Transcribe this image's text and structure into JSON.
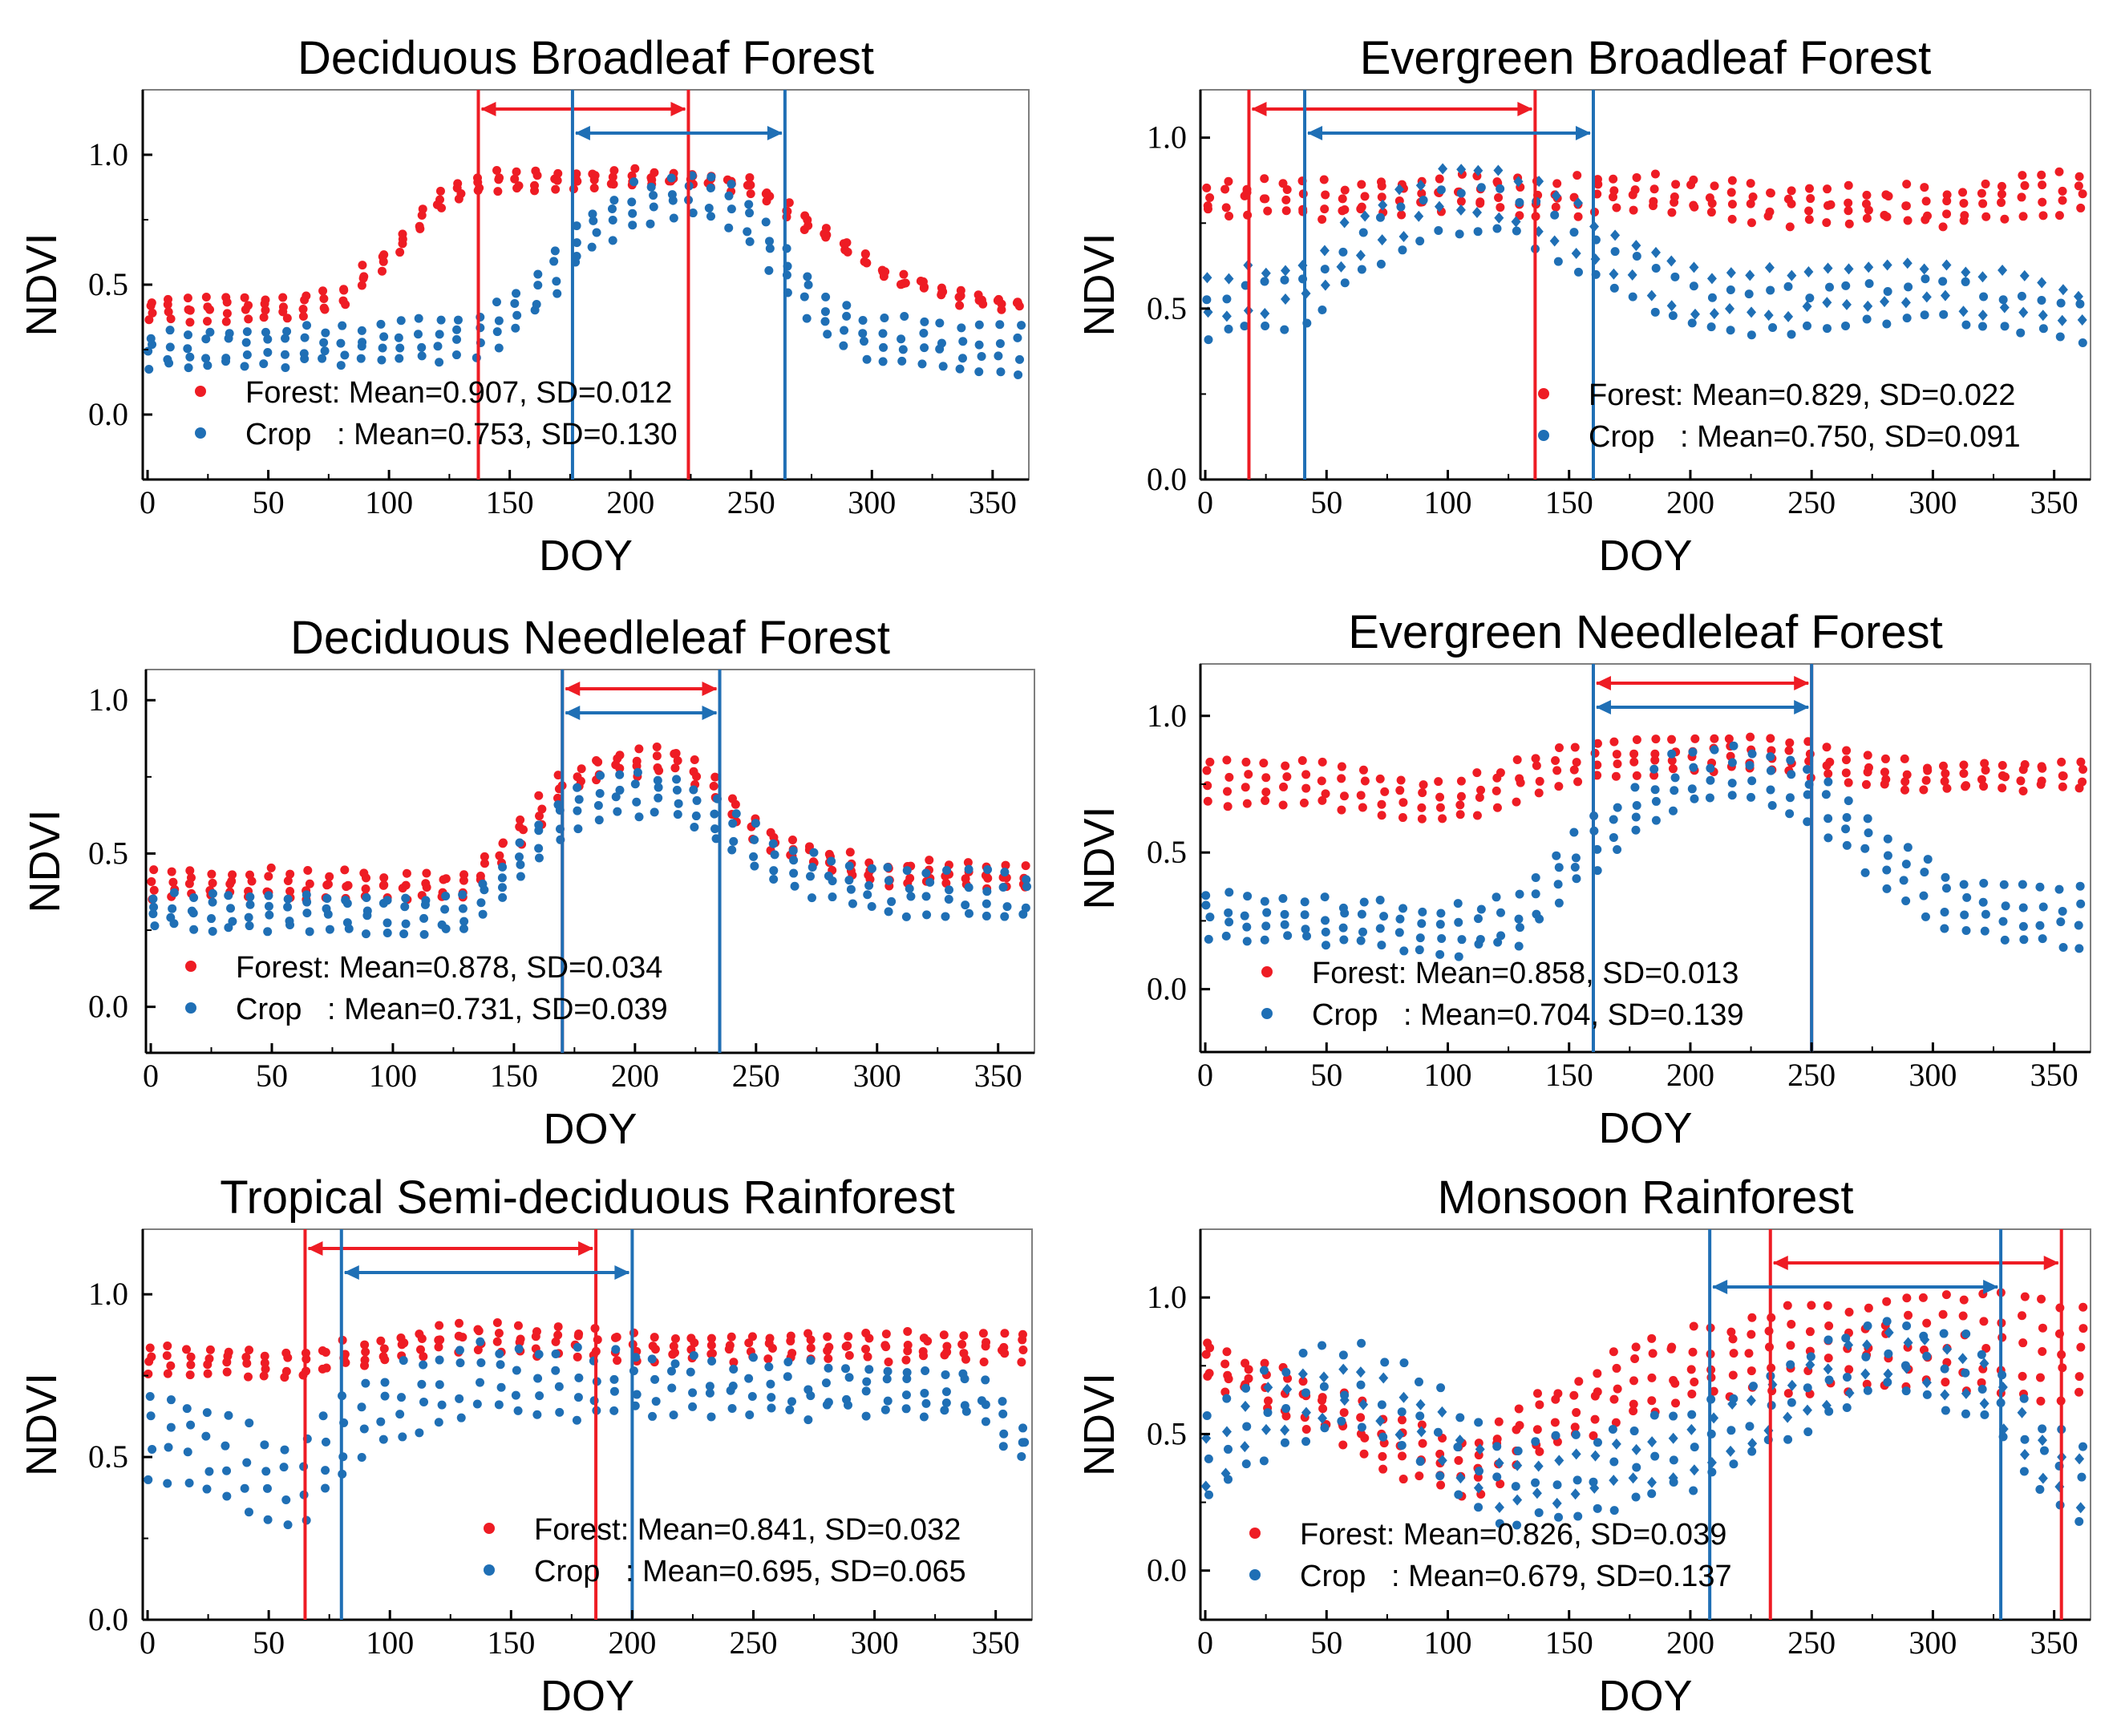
{
  "figure": {
    "colors": {
      "forest": "#ee1c24",
      "crop": "#1f6fb5",
      "axis": "#000000",
      "frame": "#7f7f7f"
    },
    "x_axis_label": "DOY",
    "y_axis_label": "NDVI",
    "x_tick_labels": [
      "0",
      "50",
      "100",
      "150",
      "200",
      "250",
      "300",
      "350"
    ]
  },
  "chart_data": [
    {
      "type": "scatter",
      "title": "Deciduous Broadleaf Forest",
      "xlabel": "DOY",
      "ylabel": "NDVI",
      "xlim": [
        -2,
        365
      ],
      "ylim": [
        -0.25,
        1.25
      ],
      "x_ticks": [
        0,
        50,
        100,
        150,
        200,
        250,
        300,
        350
      ],
      "y_ticks": [
        0.0,
        0.5,
        1.0
      ],
      "y_tick_labels": [
        "0.0",
        "0.5",
        "1.0"
      ],
      "legend_position": "bottom-left",
      "legend": [
        {
          "series": "Forest",
          "text": "Forest: Mean=0.907, SD=0.012"
        },
        {
          "series": "Crop",
          "text": "Crop   : Mean=0.753, SD=0.130"
        }
      ],
      "forest_window": [
        137,
        224
      ],
      "crop_window": [
        176,
        264
      ],
      "series": [
        {
          "name": "Forest",
          "curve": [
            [
              0,
              0.4
            ],
            [
              60,
              0.41
            ],
            [
              80,
              0.45
            ],
            [
              100,
              0.62
            ],
            [
              120,
              0.82
            ],
            [
              140,
              0.9
            ],
            [
              220,
              0.91
            ],
            [
              250,
              0.88
            ],
            [
              280,
              0.7
            ],
            [
              310,
              0.52
            ],
            [
              340,
              0.44
            ],
            [
              360,
              0.43
            ]
          ],
          "spread": [
            0.08,
            0.03
          ],
          "jitter": 0.03,
          "rows": 4,
          "symbol": "circle"
        },
        {
          "name": "Crop",
          "curve": [
            [
              0,
              0.25
            ],
            [
              60,
              0.26
            ],
            [
              100,
              0.27
            ],
            [
              140,
              0.31
            ],
            [
              160,
              0.45
            ],
            [
              180,
              0.68
            ],
            [
              200,
              0.8
            ],
            [
              220,
              0.84
            ],
            [
              240,
              0.82
            ],
            [
              260,
              0.62
            ],
            [
              280,
              0.38
            ],
            [
              300,
              0.28
            ],
            [
              360,
              0.25
            ]
          ],
          "spread": [
            0.12,
            0.18
          ],
          "jitter": 0.04,
          "rows": 4,
          "symbol": "circle"
        }
      ]
    },
    {
      "type": "scatter",
      "title": "Evergreen Broadleaf Forest",
      "xlabel": "DOY",
      "ylabel": "NDVI",
      "xlim": [
        -2,
        365
      ],
      "ylim": [
        0.0,
        1.14
      ],
      "x_ticks": [
        0,
        50,
        100,
        150,
        200,
        250,
        300,
        350
      ],
      "y_ticks": [
        0.0,
        0.5,
        1.0
      ],
      "y_tick_labels": [
        "0.0",
        "0.5",
        "1.0"
      ],
      "legend_position": "bottom-right",
      "legend": [
        {
          "series": "Forest",
          "text": "Forest: Mean=0.829, SD=0.022"
        },
        {
          "series": "Crop",
          "text": "Crop   : Mean=0.750, SD=0.091"
        }
      ],
      "forest_window": [
        18,
        136
      ],
      "crop_window": [
        41,
        160
      ],
      "series": [
        {
          "name": "Forest",
          "curve": [
            [
              0,
              0.83
            ],
            [
              60,
              0.82
            ],
            [
              100,
              0.84
            ],
            [
              150,
              0.83
            ],
            [
              200,
              0.83
            ],
            [
              250,
              0.8
            ],
            [
              300,
              0.8
            ],
            [
              360,
              0.84
            ]
          ],
          "spread": [
            0.08,
            0.1
          ],
          "jitter": 0.04,
          "rows": 4,
          "symbol": "circle"
        },
        {
          "name": "Crop",
          "curve": [
            [
              0,
              0.5
            ],
            [
              40,
              0.55
            ],
            [
              70,
              0.72
            ],
            [
              100,
              0.82
            ],
            [
              130,
              0.8
            ],
            [
              160,
              0.68
            ],
            [
              200,
              0.52
            ],
            [
              250,
              0.52
            ],
            [
              300,
              0.55
            ],
            [
              360,
              0.48
            ]
          ],
          "spread": [
            0.18,
            0.15
          ],
          "jitter": 0.04,
          "rows": 4,
          "symbol": "diamond"
        }
      ]
    },
    {
      "type": "scatter",
      "title": "Deciduous Needleleaf Forest",
      "xlabel": "DOY",
      "ylabel": "NDVI",
      "xlim": [
        -2,
        365
      ],
      "ylim": [
        -0.15,
        1.1
      ],
      "x_ticks": [
        0,
        50,
        100,
        150,
        200,
        250,
        300,
        350
      ],
      "y_ticks": [
        0.0,
        0.5,
        1.0
      ],
      "y_tick_labels": [
        "0.0",
        "0.5",
        "1.0"
      ],
      "legend_position": "bottom-left",
      "legend": [
        {
          "series": "Forest",
          "text": "Forest: Mean=0.878, SD=0.034"
        },
        {
          "series": "Crop",
          "text": "Crop   : Mean=0.731, SD=0.039"
        }
      ],
      "forest_window": [
        170,
        235
      ],
      "crop_window": [
        170,
        235
      ],
      "series": [
        {
          "name": "Forest",
          "curve": [
            [
              0,
              0.4
            ],
            [
              60,
              0.4
            ],
            [
              130,
              0.39
            ],
            [
              150,
              0.55
            ],
            [
              170,
              0.72
            ],
            [
              190,
              0.8
            ],
            [
              220,
              0.8
            ],
            [
              240,
              0.65
            ],
            [
              260,
              0.52
            ],
            [
              300,
              0.44
            ],
            [
              360,
              0.42
            ]
          ],
          "spread": [
            0.08,
            0.06
          ],
          "jitter": 0.03,
          "rows": 4,
          "symbol": "circle"
        },
        {
          "name": "Crop",
          "curve": [
            [
              0,
              0.31
            ],
            [
              60,
              0.31
            ],
            [
              130,
              0.3
            ],
            [
              150,
              0.45
            ],
            [
              170,
              0.62
            ],
            [
              190,
              0.7
            ],
            [
              220,
              0.68
            ],
            [
              240,
              0.58
            ],
            [
              260,
              0.46
            ],
            [
              300,
              0.38
            ],
            [
              360,
              0.36
            ]
          ],
          "spread": [
            0.1,
            0.14
          ],
          "jitter": 0.03,
          "rows": 4,
          "symbol": "circle"
        }
      ]
    },
    {
      "type": "scatter",
      "title": "Evergreen Needleleaf Forest",
      "xlabel": "DOY",
      "ylabel": "NDVI",
      "xlim": [
        -2,
        365
      ],
      "ylim": [
        -0.23,
        1.19
      ],
      "x_ticks": [
        0,
        50,
        100,
        150,
        200,
        250,
        300,
        350
      ],
      "y_ticks": [
        0.0,
        0.5,
        1.0
      ],
      "y_tick_labels": [
        "0.0",
        "0.5",
        "1.0"
      ],
      "legend_position": "bottom-left",
      "legend": [
        {
          "series": "Forest",
          "text": "Forest: Mean=0.858, SD=0.013"
        },
        {
          "series": "Crop",
          "text": "Crop   : Mean=0.704, SD=0.139"
        }
      ],
      "forest_window": [
        160,
        250
      ],
      "crop_window": [
        160,
        250
      ],
      "series": [
        {
          "name": "Forest",
          "curve": [
            [
              0,
              0.76
            ],
            [
              50,
              0.75
            ],
            [
              90,
              0.68
            ],
            [
              110,
              0.7
            ],
            [
              140,
              0.8
            ],
            [
              170,
              0.85
            ],
            [
              210,
              0.86
            ],
            [
              250,
              0.84
            ],
            [
              270,
              0.8
            ],
            [
              300,
              0.77
            ],
            [
              330,
              0.78
            ],
            [
              360,
              0.78
            ]
          ],
          "spread": [
            0.16,
            0.08
          ],
          "jitter": 0.03,
          "rows": 4,
          "symbol": "circle"
        },
        {
          "name": "Crop",
          "curve": [
            [
              0,
              0.27
            ],
            [
              60,
              0.24
            ],
            [
              100,
              0.21
            ],
            [
              130,
              0.25
            ],
            [
              150,
              0.45
            ],
            [
              170,
              0.6
            ],
            [
              190,
              0.75
            ],
            [
              220,
              0.8
            ],
            [
              250,
              0.72
            ],
            [
              280,
              0.48
            ],
            [
              310,
              0.3
            ],
            [
              360,
              0.26
            ]
          ],
          "spread": [
            0.14,
            0.2
          ],
          "jitter": 0.04,
          "rows": 4,
          "symbol": "circle"
        }
      ]
    },
    {
      "type": "scatter",
      "title": "Tropical Semi-deciduous Rainforest",
      "xlabel": "DOY",
      "ylabel": "NDVI",
      "xlim": [
        -2,
        365
      ],
      "ylim": [
        0.0,
        1.2
      ],
      "x_ticks": [
        0,
        50,
        100,
        150,
        200,
        250,
        300,
        350
      ],
      "y_ticks": [
        0.0,
        0.5,
        1.0
      ],
      "y_tick_labels": [
        "0.0",
        "0.5",
        "1.0"
      ],
      "legend_position": "bottom-right",
      "legend": [
        {
          "series": "Forest",
          "text": "Forest: Mean=0.841, SD=0.032"
        },
        {
          "series": "Crop",
          "text": "Crop   : Mean=0.695, SD=0.065"
        }
      ],
      "forest_window": [
        65,
        185
      ],
      "crop_window": [
        80,
        200
      ],
      "series": [
        {
          "name": "Forest",
          "curve": [
            [
              0,
              0.8
            ],
            [
              60,
              0.78
            ],
            [
              100,
              0.84
            ],
            [
              130,
              0.87
            ],
            [
              200,
              0.84
            ],
            [
              300,
              0.84
            ],
            [
              360,
              0.84
            ]
          ],
          "spread": [
            0.07,
            0.07
          ],
          "jitter": 0.03,
          "rows": 4,
          "symbol": "circle"
        },
        {
          "name": "Crop",
          "curve": [
            [
              0,
              0.58
            ],
            [
              30,
              0.5
            ],
            [
              60,
              0.4
            ],
            [
              90,
              0.62
            ],
            [
              130,
              0.74
            ],
            [
              200,
              0.72
            ],
            [
              300,
              0.7
            ],
            [
              340,
              0.7
            ],
            [
              360,
              0.55
            ]
          ],
          "spread": [
            0.26,
            0.1
          ],
          "jitter": 0.05,
          "rows": 4,
          "symbol": "circle"
        }
      ]
    },
    {
      "type": "scatter",
      "title": "Monsoon Rainforest",
      "xlabel": "DOY",
      "ylabel": "NDVI",
      "xlim": [
        -2,
        365
      ],
      "ylim": [
        -0.18,
        1.25
      ],
      "x_ticks": [
        0,
        50,
        100,
        150,
        200,
        250,
        300,
        350
      ],
      "y_ticks": [
        0.0,
        0.5,
        1.0
      ],
      "y_tick_labels": [
        "0.0",
        "0.5",
        "1.0"
      ],
      "legend_position": "bottom-left",
      "legend": [
        {
          "series": "Forest",
          "text": "Forest: Mean=0.826, SD=0.039"
        },
        {
          "series": "Crop",
          "text": "Crop   : Mean=0.679, SD=0.137"
        }
      ],
      "forest_window": [
        233,
        353
      ],
      "crop_window": [
        208,
        328
      ],
      "series": [
        {
          "name": "Forest",
          "curve": [
            [
              0,
              0.78
            ],
            [
              40,
              0.62
            ],
            [
              80,
              0.45
            ],
            [
              110,
              0.38
            ],
            [
              140,
              0.55
            ],
            [
              180,
              0.7
            ],
            [
              230,
              0.8
            ],
            [
              280,
              0.84
            ],
            [
              330,
              0.83
            ],
            [
              360,
              0.8
            ]
          ],
          "spread": [
            0.12,
            0.35
          ],
          "jitter": 0.06,
          "rows": 5,
          "symbol": "circle"
        },
        {
          "name": "Crop",
          "curve": [
            [
              0,
              0.4
            ],
            [
              30,
              0.6
            ],
            [
              60,
              0.68
            ],
            [
              90,
              0.55
            ],
            [
              120,
              0.32
            ],
            [
              160,
              0.35
            ],
            [
              200,
              0.45
            ],
            [
              240,
              0.62
            ],
            [
              280,
              0.8
            ],
            [
              320,
              0.7
            ],
            [
              340,
              0.45
            ],
            [
              360,
              0.32
            ]
          ],
          "spread": [
            0.3,
            0.25
          ],
          "jitter": 0.06,
          "rows": 5,
          "symbol": "diamond"
        }
      ]
    }
  ]
}
